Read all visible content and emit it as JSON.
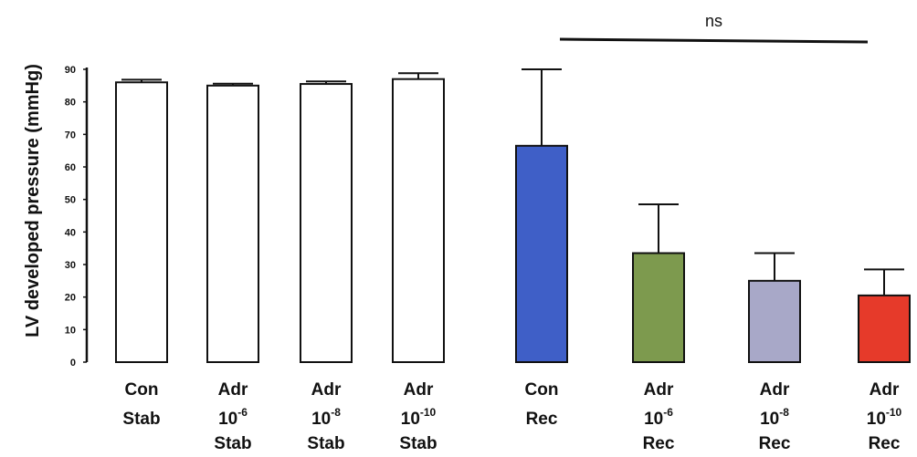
{
  "chart_data": {
    "type": "bar",
    "title": "",
    "xlabel": "",
    "ylabel": "LV developed pressure (mmHg)",
    "ylim": [
      0,
      90
    ],
    "yticks": [
      0,
      10,
      20,
      30,
      40,
      50,
      60,
      70,
      80,
      90
    ],
    "grid": false,
    "legend": "none",
    "categories": [
      {
        "lines": [
          {
            "base": "Con"
          },
          {
            "base": "Stab"
          }
        ]
      },
      {
        "lines": [
          {
            "base": "Adr"
          },
          {
            "base": "10",
            "sup": "-6"
          },
          {
            "base": "Stab"
          }
        ]
      },
      {
        "lines": [
          {
            "base": "Adr"
          },
          {
            "base": "10",
            "sup": "-8"
          },
          {
            "base": "Stab"
          }
        ]
      },
      {
        "lines": [
          {
            "base": "Adr"
          },
          {
            "base": "10",
            "sup": "-10"
          },
          {
            "base": "Stab"
          }
        ]
      },
      {
        "lines": [
          {
            "base": "Con"
          },
          {
            "base": "Rec"
          }
        ]
      },
      {
        "lines": [
          {
            "base": "Adr"
          },
          {
            "base": "10",
            "sup": "-6"
          },
          {
            "base": "Rec"
          }
        ]
      },
      {
        "lines": [
          {
            "base": "Adr"
          },
          {
            "base": "10",
            "sup": "-8"
          },
          {
            "base": "Rec"
          }
        ]
      },
      {
        "lines": [
          {
            "base": "Adr"
          },
          {
            "base": "10",
            "sup": "-10"
          },
          {
            "base": "Rec"
          }
        ]
      }
    ],
    "values": [
      86,
      85,
      85.5,
      87,
      66.5,
      33.5,
      25,
      20.5
    ],
    "errors": [
      0.8,
      0.6,
      0.8,
      1.8,
      23.5,
      15,
      8.5,
      8
    ],
    "colors": [
      "#ffffff",
      "#ffffff",
      "#ffffff",
      "#ffffff",
      "#3f5fc7",
      "#7d9a4e",
      "#a8a8c8",
      "#e63a2a"
    ],
    "annotation": {
      "text": "ns",
      "from_category": 4,
      "to_category": 7
    }
  }
}
